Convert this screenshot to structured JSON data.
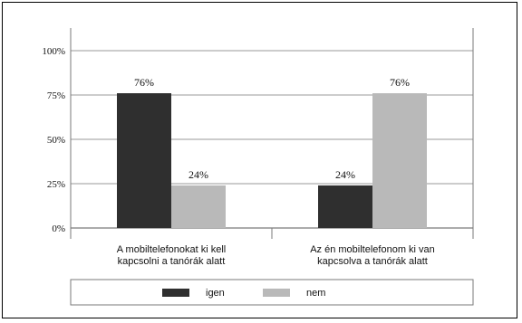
{
  "chart_data": {
    "type": "bar",
    "categories": [
      [
        "A mobiltelefonokat ki kell",
        "kapcsolni a tanórák alatt"
      ],
      [
        "Az én mobiltelefonom ki van",
        "kapcsolva a tanórák alatt"
      ]
    ],
    "series": [
      {
        "name": "igen",
        "values": [
          76,
          24
        ],
        "labels": [
          "76%",
          "24%"
        ],
        "color": "#2f2f2f"
      },
      {
        "name": "nem",
        "values": [
          24,
          76
        ],
        "labels": [
          "24%",
          "76%"
        ],
        "color": "#b9b9b9"
      }
    ],
    "yticks": [
      {
        "value": 0,
        "label": "0%"
      },
      {
        "value": 25,
        "label": "25%"
      },
      {
        "value": 50,
        "label": "50%"
      },
      {
        "value": 75,
        "label": "75%"
      },
      {
        "value": 100,
        "label": "100%"
      }
    ],
    "ylim": [
      0,
      100
    ],
    "grid": true,
    "legend_position": "bottom",
    "colors": {
      "axis": "#7a7a7a",
      "grid": "#9a9a9a",
      "text": "#111111"
    }
  }
}
